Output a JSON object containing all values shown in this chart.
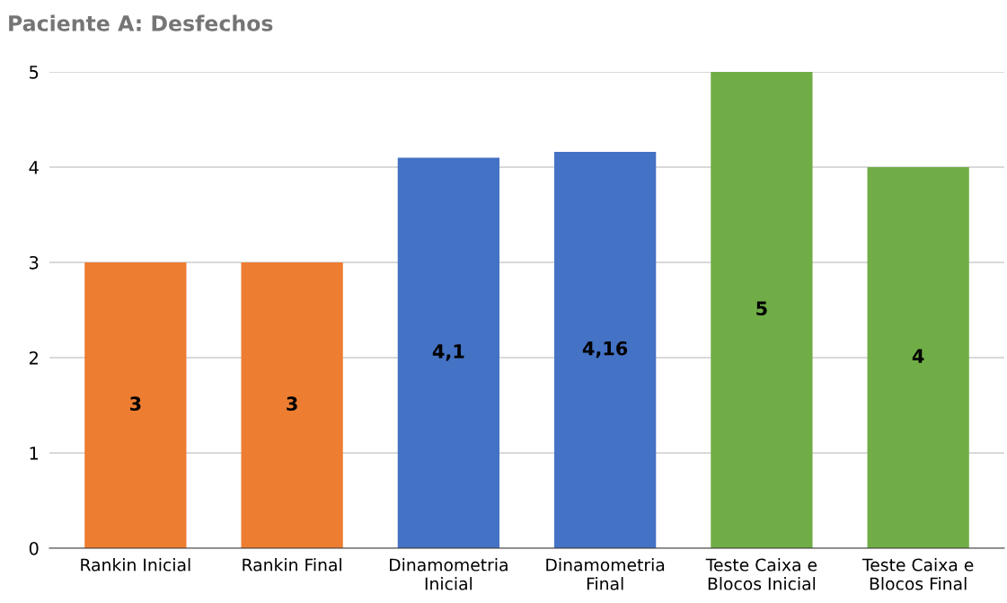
{
  "chart_data": {
    "type": "bar",
    "title": "Paciente A: Desfechos",
    "categories": [
      "Rankin Inicial",
      "Rankin Final",
      "Dinamometria\nInicial",
      "Dinamometria\nFinal",
      "Teste Caixa e\nBlocos Inicial",
      "Teste Caixa e\nBlocos Final"
    ],
    "values": [
      3,
      3,
      4.1,
      4.16,
      5,
      4
    ],
    "value_labels": [
      "3",
      "3",
      "4,1",
      "4,16",
      "5",
      "4"
    ],
    "colors": [
      "#ed7d31",
      "#ed7d31",
      "#4472c4",
      "#4472c4",
      "#70ad47",
      "#70ad47"
    ],
    "ylim": [
      0,
      5
    ],
    "yticks": [
      0,
      1,
      2,
      3,
      4,
      5
    ],
    "grid": "y"
  }
}
